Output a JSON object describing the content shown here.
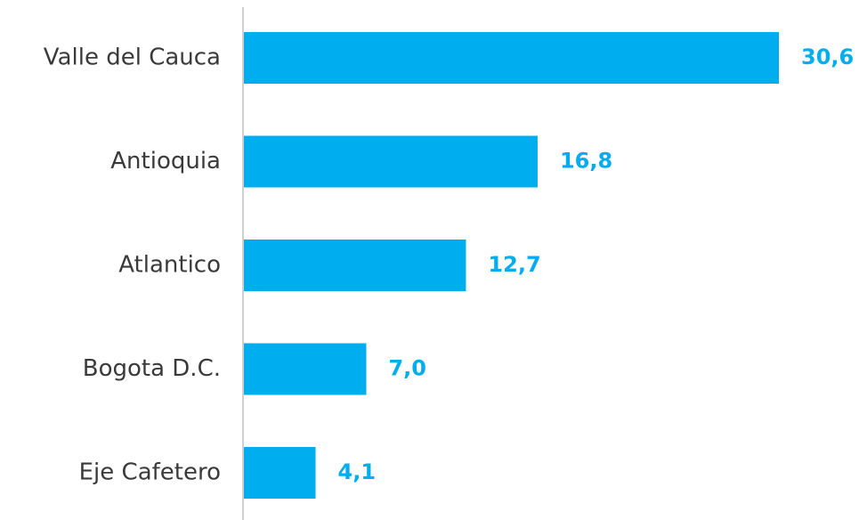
{
  "chart_data": {
    "type": "bar",
    "orientation": "horizontal",
    "categories": [
      "Valle del Cauca",
      "Antioquia",
      "Atlantico",
      "Bogota D.C.",
      "Eje Cafetero"
    ],
    "values": [
      30.6,
      16.8,
      12.7,
      7.0,
      4.1
    ],
    "value_labels": [
      "30,6",
      "16,8",
      "12,7",
      "7,0",
      "4,1"
    ],
    "xlim": [
      0,
      30.6
    ],
    "grid": false,
    "legend": "none",
    "title": "",
    "xlabel": "",
    "ylabel": "",
    "colors": {
      "bar": "#00aeef",
      "value_label": "#00aeef",
      "category_label": "#3a3a3a",
      "axis": "#d0d0d0"
    }
  }
}
